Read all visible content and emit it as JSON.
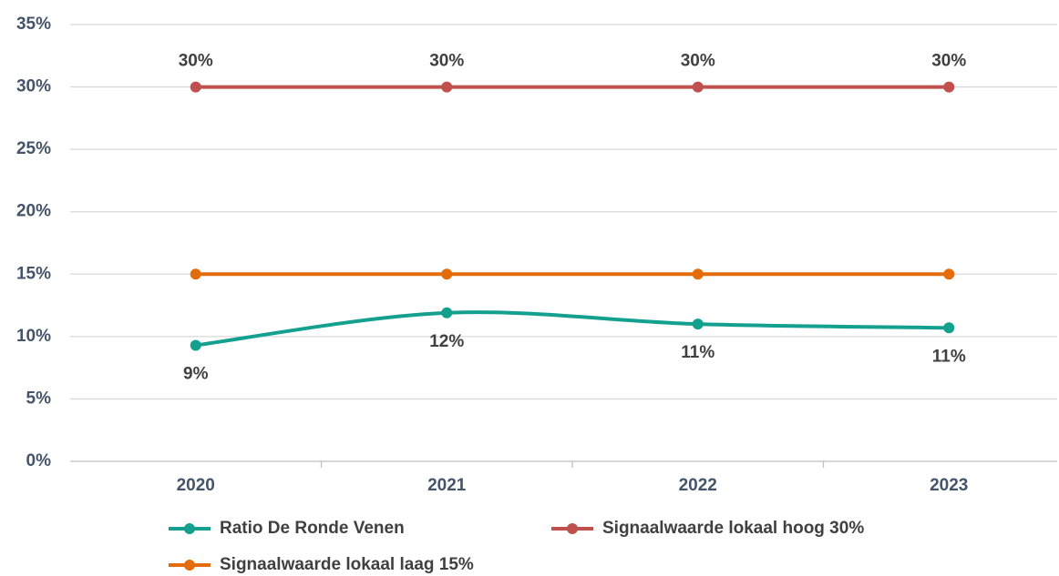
{
  "chart_data": {
    "type": "line",
    "categories": [
      "2020",
      "2021",
      "2022",
      "2023"
    ],
    "series": [
      {
        "name": "Ratio De Ronde Venen",
        "color": "#13a08f",
        "values": [
          9.3,
          11.9,
          11.0,
          10.7
        ],
        "value_labels": [
          "9%",
          "12%",
          "11%",
          "11%"
        ],
        "smooth": true,
        "label_position": "below"
      },
      {
        "name": "Signaalwaarde lokaal hoog 30%",
        "color": "#c0504d",
        "values": [
          30,
          30,
          30,
          30
        ],
        "value_labels": [
          "30%",
          "30%",
          "30%",
          "30%"
        ],
        "label_position": "above"
      },
      {
        "name": "Signaalwaarde lokaal laag 15%",
        "color": "#e46c0a",
        "values": [
          15,
          15,
          15,
          15
        ]
      }
    ],
    "ylim": [
      0,
      35
    ],
    "yticks": [
      {
        "value": 0,
        "label": "0%"
      },
      {
        "value": 5,
        "label": "5%"
      },
      {
        "value": 10,
        "label": "10%"
      },
      {
        "value": 15,
        "label": "15%"
      },
      {
        "value": 20,
        "label": "20%"
      },
      {
        "value": 25,
        "label": "25%"
      },
      {
        "value": 30,
        "label": "30%"
      },
      {
        "value": 35,
        "label": "35%"
      }
    ],
    "grid": true
  }
}
